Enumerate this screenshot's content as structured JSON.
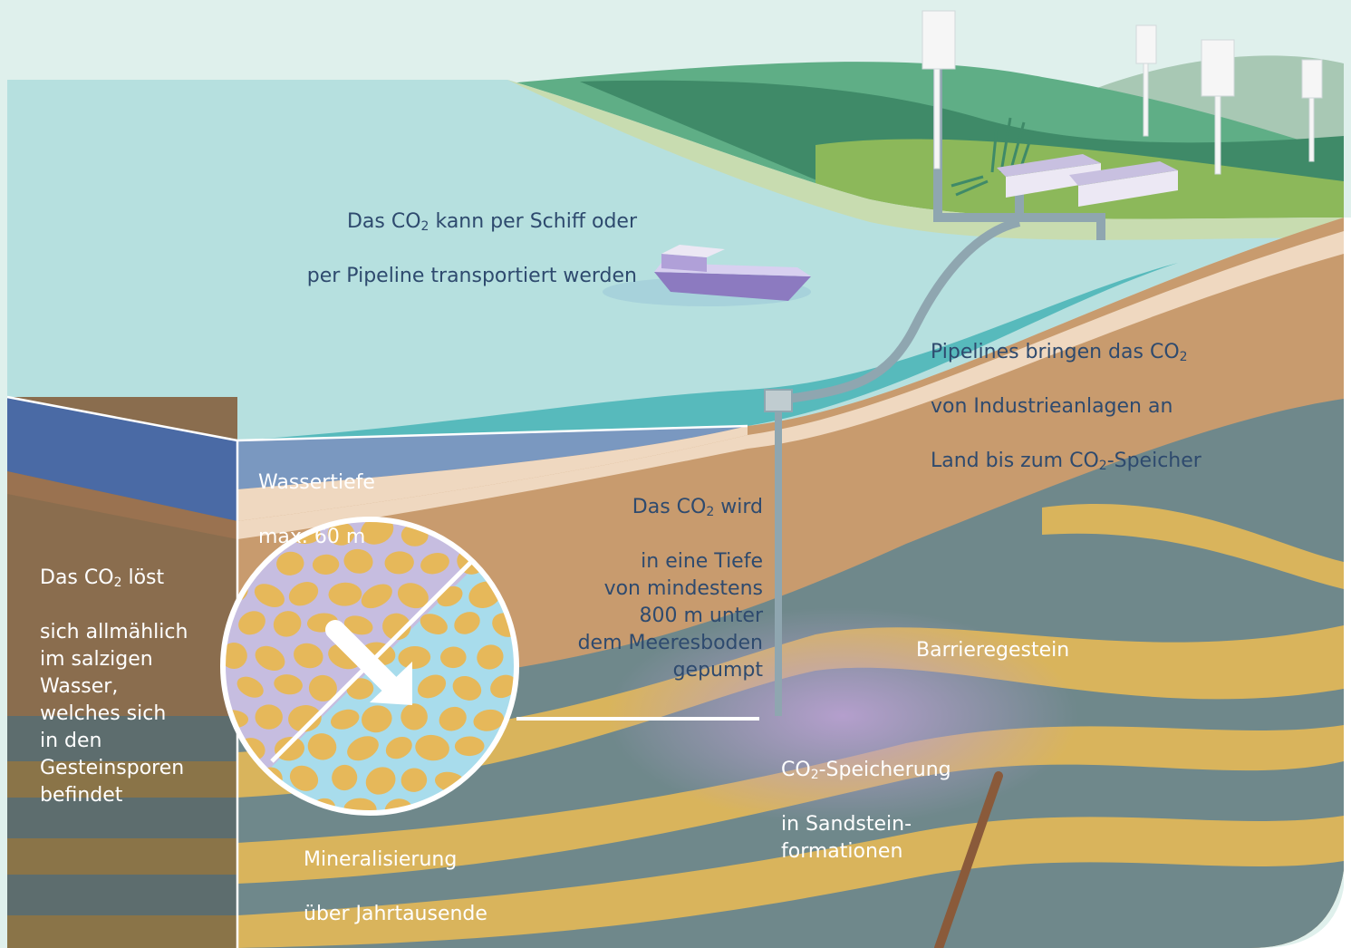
{
  "colors": {
    "sky": "#dff0ec",
    "sea": "#b6e0df",
    "sea_shallow": "#4db6b8",
    "deep_water": "#4a6aa5",
    "sediment": "#c89b6e",
    "sand_layer": "#d9b45c",
    "barrier_rock": "#6f888b",
    "hills": "#4f9a6f",
    "coast": "#8cb85a",
    "pipeline": "#8fa6b0",
    "ship": "#8c7ac0",
    "storage_highlight": "#b8a0d0",
    "text_dark": "#2e4a6e",
    "text_light": "#ffffff"
  },
  "icons": [
    "ship-icon",
    "wind-turbine-icon",
    "industry-building-icon",
    "pipeline-icon",
    "injection-well-icon",
    "rock-pore-magnifier-icon",
    "arrow-icon",
    "fault-line-icon"
  ],
  "labels": {
    "transport_l1_a": "Das CO",
    "transport_l1_b": " kann per Schiff oder",
    "transport_l2": "per Pipeline transportiert werden",
    "pipelines_l1_a": "Pipelines bringen das CO",
    "pipelines_l2": "von Industrieanlagen an",
    "pipelines_l3_a": "Land bis zum CO",
    "pipelines_l3_b": "-Speicher",
    "water_depth_l1": "Wassertiefe",
    "water_depth_l2": "max. 60 m",
    "inject_l1_a": "Das CO",
    "inject_l1_b": " wird",
    "inject_rest": "in eine Tiefe\nvon mindestens\n800 m unter\ndem Meeresboden\ngepumpt",
    "dissolve_l1_a": "Das CO",
    "dissolve_l1_b": " löst",
    "dissolve_rest": "sich allmählich\nim salzigen\nWasser,\nwelches sich\nin den\nGesteinsporen\nbefindet",
    "barrier": "Barrieregestein",
    "storage_l1_a": "CO",
    "storage_l1_b": "-Speicherung",
    "storage_rest": "in Sandstein-\nformationen",
    "mineral_l1": "Mineralisierung",
    "mineral_l2": "über Jahrtausende",
    "sub2": "2"
  }
}
